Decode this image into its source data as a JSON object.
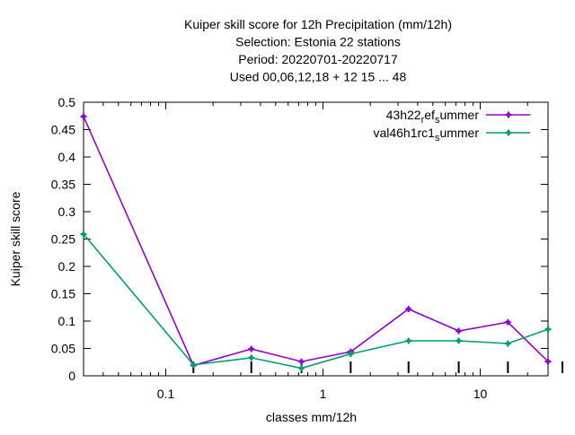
{
  "chart_data": {
    "type": "line",
    "title_lines": [
      "Kuiper skill score  for 12h Precipitation (mm/12h)",
      "Selection: Estonia      22 stations",
      "Period: 20220701-20220717",
      "Used  00,06,12,18  + 12 15 ... 48"
    ],
    "xlabel": "classes mm/12h",
    "ylabel": "Kuiper skill score",
    "x_scale": "log",
    "xlim": [
      0.03,
      27
    ],
    "ylim": [
      0,
      0.5
    ],
    "x_ticks": [
      0.1,
      1,
      10
    ],
    "x_tick_labels": [
      "0.1",
      "1",
      "10"
    ],
    "y_ticks": [
      0,
      0.05,
      0.1,
      0.15,
      0.2,
      0.25,
      0.3,
      0.35,
      0.4,
      0.45,
      0.5
    ],
    "y_tick_labels": [
      "0",
      "0.05",
      "0.1",
      "0.15",
      "0.2",
      "0.25",
      "0.3",
      "0.35",
      "0.4",
      "0.45",
      "0.5"
    ],
    "grid": false,
    "legend_position": "top-right",
    "x": [
      0.03,
      0.15,
      0.35,
      0.73,
      1.5,
      3.5,
      7.3,
      15,
      27
    ],
    "series": [
      {
        "name_parts": [
          "43h22",
          "r",
          "ef",
          "s",
          "ummer"
        ],
        "color": "#9400d3",
        "values": [
          0.474,
          0.019,
          0.049,
          0.026,
          0.044,
          0.122,
          0.082,
          0.098,
          0.026
        ]
      },
      {
        "name_parts": [
          "val46h1rc1",
          "s",
          "ummer"
        ],
        "color": "#009e73",
        "values": [
          0.259,
          0.02,
          0.033,
          0.014,
          0.04,
          0.064,
          0.064,
          0.059,
          0.085
        ]
      }
    ],
    "bar_marker_x": [
      0.15,
      0.35,
      0.73,
      1.5,
      3.5,
      7.3,
      15,
      27
    ]
  }
}
